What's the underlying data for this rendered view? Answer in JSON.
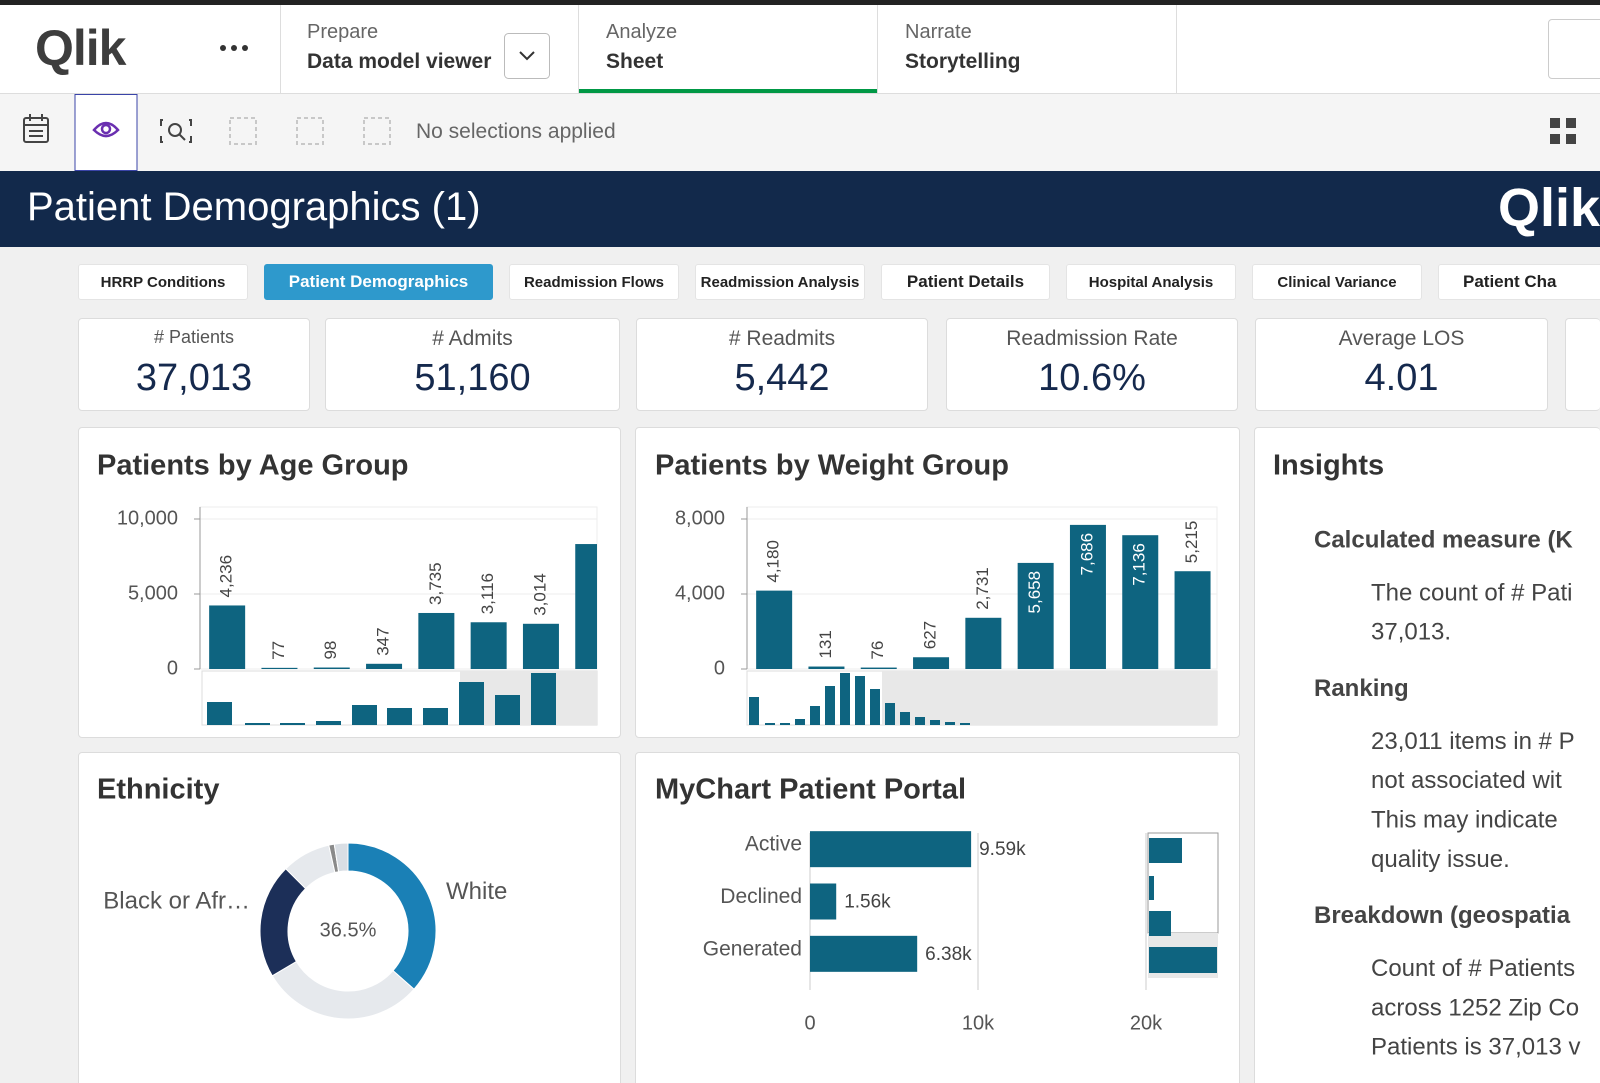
{
  "header": {
    "logo": "Qlik",
    "active_nav": 1,
    "nav": [
      {
        "label": "Prepare",
        "sub": "Data model viewer"
      },
      {
        "label": "Analyze",
        "sub": "Sheet"
      },
      {
        "label": "Narrate",
        "sub": "Storytelling"
      }
    ]
  },
  "toolbar": {
    "selections": "No selections applied"
  },
  "sheet_title": "Patient Demographics (1)",
  "active_tab": 1,
  "sheet_tabs": [
    "HRRP Conditions",
    "Patient Demographics",
    "Readmission Flows",
    "Readmission Analysis",
    "Patient Details",
    "Hospital Analysis",
    "Clinical Variance",
    "Patient Cha"
  ],
  "kpis": [
    {
      "label": "# Patients",
      "value": "37,013"
    },
    {
      "label": "# Admits",
      "value": "51,160"
    },
    {
      "label": "# Readmits",
      "value": "5,442"
    },
    {
      "label": "Readmission Rate",
      "value": "10.6%"
    },
    {
      "label": "Average LOS",
      "value": "4.01"
    }
  ],
  "chart_data": [
    {
      "type": "bar",
      "title": "Patients by Age Group",
      "color": "#0e6480",
      "grid": true,
      "values": [
        4236,
        77,
        98,
        347,
        3735,
        3116,
        3014,
        8330
      ],
      "value_labels": [
        "4,236",
        "77",
        "98",
        "347",
        "3,735",
        "3,116",
        "3,014",
        null
      ],
      "ylim": [
        0,
        10800
      ],
      "yticks": [
        0,
        {
          "value": 5000,
          "label": "5,000"
        },
        {
          "value": 10000,
          "label": "10,000"
        }
      ]
    },
    {
      "type": "bar",
      "title": "Patients by Weight Group",
      "color": "#0e6480",
      "grid": true,
      "values": [
        4180,
        131,
        76,
        627,
        2731,
        5658,
        7686,
        7136,
        5215
      ],
      "value_labels": [
        "4,180",
        "131",
        "76",
        "627",
        "2,731",
        "5,658",
        "7,686",
        "7,136",
        "5,215"
      ],
      "ylim": [
        0,
        8640
      ],
      "yticks": [
        0,
        {
          "value": 4000,
          "label": "4,000"
        },
        {
          "value": 8000,
          "label": "8,000"
        }
      ]
    },
    {
      "type": "donut",
      "title": "Ethnicity",
      "names": [
        "White",
        null,
        "Black or Afr…",
        null,
        null,
        null
      ],
      "values": [
        36.5,
        30,
        21,
        9,
        1,
        2.5
      ],
      "value_labels": [
        "36.5%",
        null,
        null,
        null,
        null,
        null
      ],
      "colors": [
        "#1a80b6",
        "#e6e9ed",
        "#1c2f58",
        "#e6e9ed",
        "#8a8a8a",
        "#d9dee4"
      ]
    },
    {
      "type": "hbar",
      "title": "MyChart Patient Portal",
      "color": "#0e6480",
      "grid": true,
      "categories": [
        "Active",
        "Declined",
        "Generated"
      ],
      "values": [
        9590,
        1560,
        6380
      ],
      "value_labels": [
        "9.59k",
        "1.56k",
        "6.38k"
      ],
      "xlim": [
        0,
        20000
      ],
      "xticks": [
        0,
        {
          "value": 10000,
          "label": "10k"
        },
        {
          "value": 20000,
          "label": "20k"
        }
      ]
    }
  ],
  "insights": {
    "title": "Insights",
    "sections": [
      {
        "heading": "Calculated measure (K",
        "lines": [
          "The count of # Pati",
          "37,013."
        ]
      },
      {
        "heading": "Ranking",
        "lines": [
          "23,011 items in # P",
          "not associated wit",
          "This may indicate",
          "quality issue."
        ]
      },
      {
        "heading": "Breakdown (geospatia",
        "lines": [
          "Count of # Patients",
          "across 1252 Zip Co",
          "Patients is 37,013 v"
        ]
      }
    ]
  }
}
